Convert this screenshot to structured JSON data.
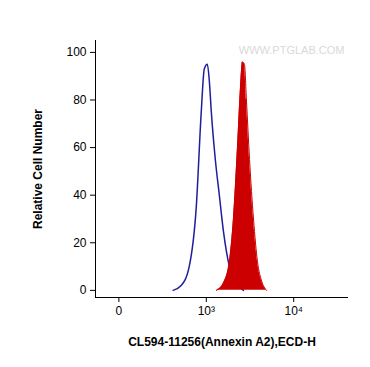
{
  "chart_data": {
    "type": "histogram_overlay",
    "x_label": "CL594-11256(Annexin A2),ECD-H",
    "y_label": "Relative Cell Number",
    "log": "x",
    "grid": false,
    "xlim": [
      -100,
      40000
    ],
    "xticks": [
      0,
      {
        "value": 1000,
        "label": "10³"
      },
      {
        "value": 10000,
        "label": "10⁴"
      }
    ],
    "ylim": [
      -3,
      105
    ],
    "yticks": [
      0,
      20,
      40,
      60,
      80,
      100
    ],
    "annotations": [
      {
        "text": "WWW.PTGLAB.COM"
      }
    ],
    "series": [
      {
        "type": "line",
        "color": "#1f1f9e",
        "x": [
          364,
          473,
          607,
          749,
          866,
          944,
          1029,
          1089,
          1151,
          1286,
          1436,
          1603,
          1886,
          2275,
          2737
        ],
        "values": [
          0,
          2,
          10,
          35,
          75,
          93,
          95,
          88,
          75,
          55,
          40,
          25,
          10,
          3,
          0
        ]
      },
      {
        "type": "area",
        "color": "#cc0000",
        "x": [
          1322,
          1603,
          1886,
          2100,
          2338,
          2530,
          2667,
          2812,
          2960,
          3210,
          3560,
          3950,
          4390,
          4990
        ],
        "values": [
          0,
          3,
          12,
          30,
          60,
          85,
          96,
          95,
          80,
          55,
          30,
          12,
          4,
          0
        ]
      }
    ]
  }
}
